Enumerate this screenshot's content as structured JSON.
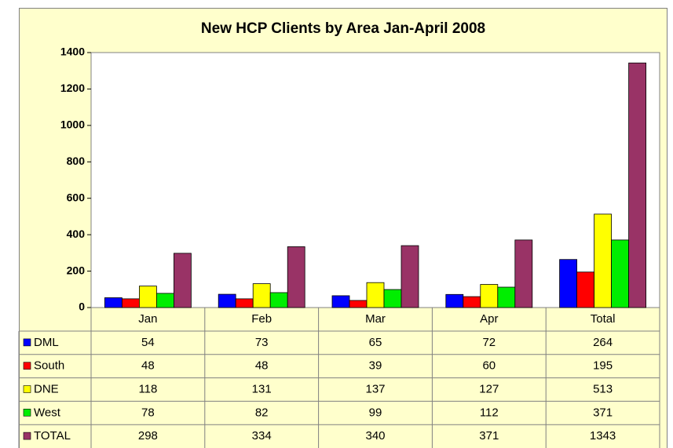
{
  "chart_data": {
    "type": "bar",
    "title": "New HCP Clients by Area Jan-April 2008",
    "categories": [
      "Jan",
      "Feb",
      "Mar",
      "Apr",
      "Total"
    ],
    "series": [
      {
        "name": "DML",
        "color": "#0000ff",
        "values": [
          54,
          73,
          65,
          72,
          264
        ]
      },
      {
        "name": "South",
        "color": "#ff0000",
        "values": [
          48,
          48,
          39,
          60,
          195
        ]
      },
      {
        "name": "DNE",
        "color": "#ffff00",
        "values": [
          118,
          131,
          137,
          127,
          513
        ]
      },
      {
        "name": "West",
        "color": "#00ee00",
        "values": [
          78,
          82,
          99,
          112,
          371
        ]
      },
      {
        "name": "TOTAL",
        "color": "#993366",
        "values": [
          298,
          334,
          340,
          371,
          1343
        ]
      }
    ],
    "ylim": [
      0,
      1400
    ],
    "yticks": [
      0,
      200,
      400,
      600,
      800,
      1000,
      1200,
      1400
    ],
    "grid": false
  }
}
